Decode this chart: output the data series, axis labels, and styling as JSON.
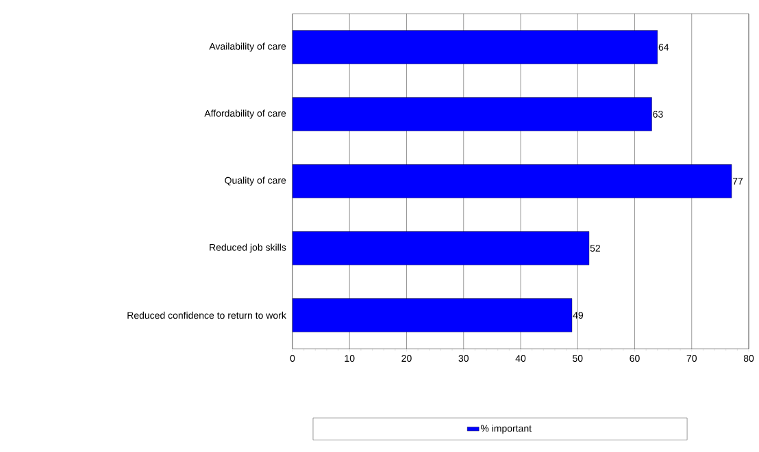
{
  "chart_data": {
    "type": "bar",
    "orientation": "horizontal",
    "categories": [
      "Availability of care",
      "Affordability of care",
      "Quality of care",
      "Reduced job skills",
      "Reduced confidence to return to work"
    ],
    "series": [
      {
        "name": "% important",
        "color": "#0000ff",
        "values": [
          64,
          63,
          77,
          52,
          49
        ]
      }
    ],
    "xlim": [
      0,
      80
    ],
    "xticks": [
      0,
      10,
      20,
      30,
      40,
      50,
      60,
      70,
      80
    ],
    "grid": "x",
    "legend": "bottom",
    "data_labels": true
  }
}
